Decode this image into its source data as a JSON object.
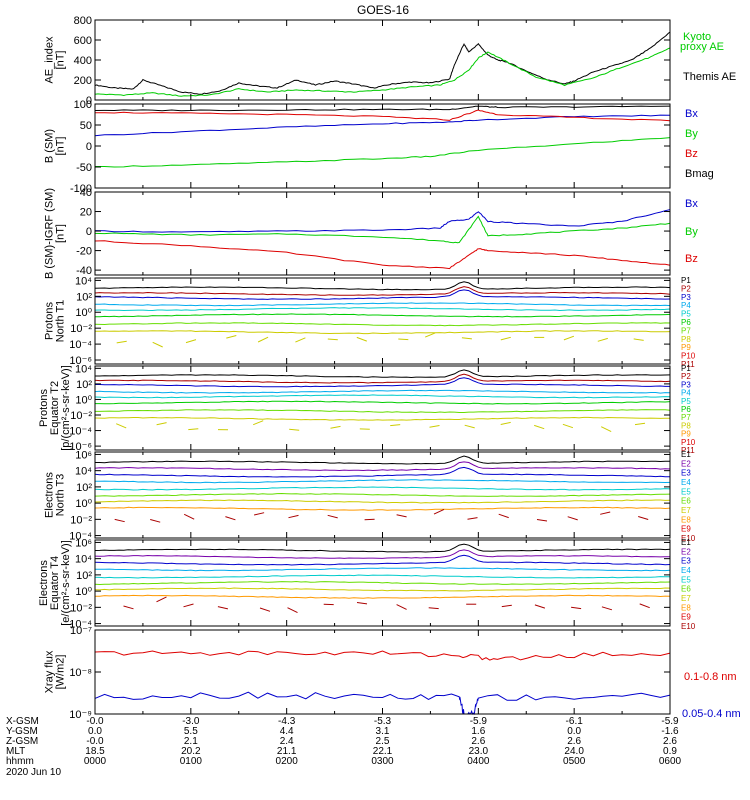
{
  "title": "GOES-16",
  "date_label": "2020 Jun 10",
  "time_axis": {
    "range_hours": [
      0,
      6
    ],
    "tick_hours": [
      0,
      1,
      2,
      3,
      4,
      5,
      6
    ],
    "row_labels": [
      "X-GSM",
      "Y-GSM",
      "Z-GSM",
      "MLT",
      "hhmm"
    ],
    "rows": [
      [
        "-0.0",
        "-3.0",
        "-4.3",
        "-5.3",
        "-5.9",
        "-6.1",
        "-5.9"
      ],
      [
        "0.0",
        "5.5",
        "4.4",
        "3.1",
        "1.6",
        "0.0",
        "-1.6"
      ],
      [
        "-0.0",
        "2.1",
        "2.4",
        "2.5",
        "2.6",
        "2.6",
        "2.6"
      ],
      [
        "18.5",
        "20.2",
        "21.1",
        "22.1",
        "23.0",
        "24.0",
        "0.9"
      ],
      [
        "0000",
        "0100",
        "0200",
        "0300",
        "0400",
        "0500",
        "0600"
      ]
    ]
  },
  "colors": {
    "black": "#000000",
    "red": "#dd0000",
    "green": "#00cc00",
    "blue": "#0000cc",
    "cyan": "#00cccc",
    "orange": "#ff9900",
    "yellow": "#cccc00",
    "darkred": "#aa0000",
    "purple": "#7700aa",
    "sky": "#00aaee",
    "lime": "#66dd00",
    "gold": "#ddaa00"
  },
  "chart_data": [
    {
      "type": "line",
      "id": "ae",
      "ylabel": [
        "AE_index",
        "[nT]"
      ],
      "ylim": [
        0,
        800
      ],
      "yticks": [
        "0",
        "200",
        "400",
        "600",
        "800"
      ],
      "ytick_values": [
        0,
        200,
        400,
        600,
        800
      ],
      "legend": [
        {
          "text": "Kyoto",
          "color": "green"
        },
        {
          "text": "proxy AE",
          "color": "green"
        },
        {
          "text": "Themis AE",
          "color": "black"
        }
      ],
      "series": [
        {
          "color": "black",
          "points": [
            [
              0,
              150
            ],
            [
              0.2,
              120
            ],
            [
              0.4,
              110
            ],
            [
              0.5,
              200
            ],
            [
              0.7,
              140
            ],
            [
              0.9,
              80
            ],
            [
              1.1,
              60
            ],
            [
              1.3,
              90
            ],
            [
              1.5,
              170
            ],
            [
              1.7,
              140
            ],
            [
              1.9,
              120
            ],
            [
              2.1,
              200
            ],
            [
              2.3,
              150
            ],
            [
              2.5,
              190
            ],
            [
              2.7,
              160
            ],
            [
              2.9,
              120
            ],
            [
              3.1,
              160
            ],
            [
              3.3,
              180
            ],
            [
              3.5,
              170
            ],
            [
              3.7,
              210
            ],
            [
              3.75,
              350
            ],
            [
              3.85,
              560
            ],
            [
              3.9,
              480
            ],
            [
              4.0,
              560
            ],
            [
              4.1,
              450
            ],
            [
              4.2,
              400
            ],
            [
              4.3,
              380
            ],
            [
              4.5,
              290
            ],
            [
              4.7,
              210
            ],
            [
              4.9,
              160
            ],
            [
              5.0,
              190
            ],
            [
              5.2,
              280
            ],
            [
              5.4,
              340
            ],
            [
              5.6,
              400
            ],
            [
              5.8,
              520
            ],
            [
              6,
              680
            ]
          ]
        },
        {
          "color": "green",
          "points": [
            [
              0,
              60
            ],
            [
              0.3,
              50
            ],
            [
              0.6,
              70
            ],
            [
              0.9,
              40
            ],
            [
              1.2,
              50
            ],
            [
              1.5,
              110
            ],
            [
              1.8,
              80
            ],
            [
              2.1,
              100
            ],
            [
              2.4,
              90
            ],
            [
              2.7,
              80
            ],
            [
              3.0,
              100
            ],
            [
              3.3,
              130
            ],
            [
              3.6,
              150
            ],
            [
              3.75,
              200
            ],
            [
              3.9,
              300
            ],
            [
              4.0,
              420
            ],
            [
              4.1,
              480
            ],
            [
              4.3,
              380
            ],
            [
              4.6,
              230
            ],
            [
              4.9,
              150
            ],
            [
              5.2,
              220
            ],
            [
              5.5,
              330
            ],
            [
              5.8,
              430
            ],
            [
              6,
              520
            ]
          ]
        }
      ]
    },
    {
      "type": "line",
      "id": "bsm",
      "ylabel": [
        "B (SM)",
        "[nT]"
      ],
      "ylim": [
        -100,
        100
      ],
      "yticks": [
        "-100",
        "-50",
        "0",
        "50",
        "100"
      ],
      "ytick_values": [
        -100,
        -50,
        0,
        50,
        100
      ],
      "legend": [
        {
          "text": "Bx",
          "color": "blue"
        },
        {
          "text": "By",
          "color": "green"
        },
        {
          "text": "Bz",
          "color": "red"
        },
        {
          "text": "Bmag",
          "color": "black"
        }
      ],
      "series": [
        {
          "color": "black",
          "points": [
            [
              0,
              85
            ],
            [
              1,
              85
            ],
            [
              2,
              86
            ],
            [
              3,
              87
            ],
            [
              3.7,
              87
            ],
            [
              4.0,
              95
            ],
            [
              4.2,
              92
            ],
            [
              5,
              93
            ],
            [
              6,
              95
            ]
          ]
        },
        {
          "color": "blue",
          "points": [
            [
              0,
              25
            ],
            [
              1,
              35
            ],
            [
              2,
              45
            ],
            [
              3,
              53
            ],
            [
              3.7,
              57
            ],
            [
              4.0,
              62
            ],
            [
              5,
              70
            ],
            [
              6,
              73
            ]
          ]
        },
        {
          "color": "red",
          "points": [
            [
              0,
              80
            ],
            [
              1,
              78
            ],
            [
              2,
              75
            ],
            [
              3,
              70
            ],
            [
              3.7,
              62
            ],
            [
              4.0,
              85
            ],
            [
              4.2,
              75
            ],
            [
              5,
              68
            ],
            [
              6,
              60
            ]
          ]
        },
        {
          "color": "green",
          "points": [
            [
              0,
              -50
            ],
            [
              1,
              -45
            ],
            [
              2,
              -38
            ],
            [
              3,
              -30
            ],
            [
              3.5,
              -25
            ],
            [
              4.0,
              -10
            ],
            [
              5,
              5
            ],
            [
              6,
              20
            ]
          ]
        }
      ]
    },
    {
      "type": "line",
      "id": "bigrf",
      "ylabel": [
        "B (SM)-IGRF (SM)",
        "[nT]"
      ],
      "ylim": [
        -45,
        40
      ],
      "yticks": [
        "-40",
        "-20",
        "0",
        "20",
        "40"
      ],
      "ytick_values": [
        -40,
        -20,
        0,
        20,
        40
      ],
      "legend": [
        {
          "text": "Bx",
          "color": "blue"
        },
        {
          "text": "By",
          "color": "green"
        },
        {
          "text": "Bz",
          "color": "red"
        }
      ],
      "series": [
        {
          "color": "blue",
          "points": [
            [
              0,
              0
            ],
            [
              1,
              -1
            ],
            [
              2,
              0
            ],
            [
              3,
              1
            ],
            [
              3.6,
              3
            ],
            [
              3.7,
              10
            ],
            [
              3.9,
              12
            ],
            [
              4.0,
              20
            ],
            [
              4.1,
              10
            ],
            [
              4.4,
              8
            ],
            [
              5,
              5
            ],
            [
              5.5,
              10
            ],
            [
              6,
              22
            ]
          ]
        },
        {
          "color": "green",
          "points": [
            [
              0,
              -2
            ],
            [
              1,
              -4
            ],
            [
              2,
              -3
            ],
            [
              3,
              -6
            ],
            [
              3.6,
              -10
            ],
            [
              3.8,
              -12
            ],
            [
              4.0,
              15
            ],
            [
              4.1,
              -5
            ],
            [
              4.5,
              -3
            ],
            [
              5,
              0
            ],
            [
              5.5,
              3
            ],
            [
              6,
              8
            ]
          ]
        },
        {
          "color": "red",
          "points": [
            [
              0,
              -10
            ],
            [
              1,
              -15
            ],
            [
              2,
              -22
            ],
            [
              3,
              -35
            ],
            [
              3.7,
              -38
            ],
            [
              3.9,
              -25
            ],
            [
              4.0,
              -18
            ],
            [
              4.1,
              -20
            ],
            [
              4.5,
              -22
            ],
            [
              5,
              -25
            ],
            [
              5.5,
              -30
            ],
            [
              6,
              -35
            ]
          ]
        }
      ]
    },
    {
      "type": "line",
      "id": "protons_north",
      "ylabel": [
        "Protons",
        "North T1"
      ],
      "yscale": "log",
      "ylim": [
        -6.5,
        4.3
      ],
      "yticks": [
        "10⁴",
        "10²",
        "10⁰",
        "10⁻²",
        "10⁻⁴",
        "10⁻⁶"
      ],
      "ytick_values": [
        4,
        2,
        0,
        -2,
        -4,
        -6
      ],
      "legend": [
        {
          "text": "P1",
          "color": "black"
        },
        {
          "text": "P2",
          "color": "darkred"
        },
        {
          "text": "P3",
          "color": "blue"
        },
        {
          "text": "P4",
          "color": "sky"
        },
        {
          "text": "P5",
          "color": "cyan"
        },
        {
          "text": "P6",
          "color": "green"
        },
        {
          "text": "P7",
          "color": "lime"
        },
        {
          "text": "P8",
          "color": "yellow"
        },
        {
          "text": "P9",
          "color": "orange"
        },
        {
          "text": "P10",
          "color": "red"
        },
        {
          "text": "P11",
          "color": "darkred"
        }
      ],
      "levels": [
        3.0,
        2.3,
        1.8,
        1.0,
        0.4,
        -0.4,
        -1.5,
        -2.5
      ]
    },
    {
      "type": "line",
      "id": "protons_equator",
      "ylabel": [
        "Protons",
        "Equator T2",
        "[p/(cm²-s-sr-keV)]"
      ],
      "yscale": "log",
      "ylim": [
        -6.5,
        4.3
      ],
      "yticks": [
        "10⁴",
        "10²",
        "10⁰",
        "10⁻²",
        "10⁻⁴",
        "10⁻⁶"
      ],
      "ytick_values": [
        4,
        2,
        0,
        -2,
        -4,
        -6
      ],
      "legend": [
        {
          "text": "P1",
          "color": "black"
        },
        {
          "text": "P2",
          "color": "darkred"
        },
        {
          "text": "P3",
          "color": "blue"
        },
        {
          "text": "P4",
          "color": "sky"
        },
        {
          "text": "P5",
          "color": "cyan"
        },
        {
          "text": "P6",
          "color": "green"
        },
        {
          "text": "P7",
          "color": "lime"
        },
        {
          "text": "P8",
          "color": "yellow"
        },
        {
          "text": "P9",
          "color": "orange"
        },
        {
          "text": "P10",
          "color": "red"
        },
        {
          "text": "P11",
          "color": "darkred"
        }
      ],
      "levels": [
        3.0,
        2.3,
        1.8,
        1.0,
        0.4,
        -0.4,
        -1.5,
        -2.5
      ]
    },
    {
      "type": "line",
      "id": "electrons_north",
      "ylabel": [
        "Electrons",
        "North T3"
      ],
      "yscale": "log",
      "ylim": [
        -4.3,
        6.3
      ],
      "yticks": [
        "10⁶",
        "10⁴",
        "10²",
        "10⁰",
        "10⁻²",
        "10⁻⁴"
      ],
      "ytick_values": [
        6,
        4,
        2,
        0,
        -2,
        -4
      ],
      "legend": [
        {
          "text": "E1",
          "color": "black"
        },
        {
          "text": "E2",
          "color": "purple"
        },
        {
          "text": "E3",
          "color": "blue"
        },
        {
          "text": "E4",
          "color": "sky"
        },
        {
          "text": "E5",
          "color": "cyan"
        },
        {
          "text": "E6",
          "color": "lime"
        },
        {
          "text": "E7",
          "color": "yellow"
        },
        {
          "text": "E8",
          "color": "orange"
        },
        {
          "text": "E9",
          "color": "red"
        },
        {
          "text": "E10",
          "color": "darkred"
        }
      ],
      "levels": [
        5.0,
        4.2,
        3.4,
        2.7,
        1.8,
        1.0,
        0.2,
        -0.7
      ]
    },
    {
      "type": "line",
      "id": "electrons_equator",
      "ylabel": [
        "Electrons",
        "Equator T4",
        "[e/(cm²-s-sr-keV)]"
      ],
      "yscale": "log",
      "ylim": [
        -4.3,
        6.3
      ],
      "yticks": [
        "10⁶",
        "10⁴",
        "10²",
        "10⁰",
        "10⁻²",
        "10⁻⁴"
      ],
      "ytick_values": [
        6,
        4,
        2,
        0,
        -2,
        -4
      ],
      "legend": [
        {
          "text": "E1",
          "color": "black"
        },
        {
          "text": "E2",
          "color": "purple"
        },
        {
          "text": "E3",
          "color": "blue"
        },
        {
          "text": "E4",
          "color": "sky"
        },
        {
          "text": "E5",
          "color": "cyan"
        },
        {
          "text": "E6",
          "color": "lime"
        },
        {
          "text": "E7",
          "color": "yellow"
        },
        {
          "text": "E8",
          "color": "orange"
        },
        {
          "text": "E9",
          "color": "red"
        },
        {
          "text": "E10",
          "color": "darkred"
        }
      ],
      "levels": [
        5.0,
        4.2,
        3.4,
        2.7,
        1.8,
        1.0,
        0.2,
        -0.7
      ]
    },
    {
      "type": "line",
      "id": "xray",
      "ylabel": [
        "Xray flux",
        "[W/m2]"
      ],
      "yscale": "log",
      "ylim": [
        -9,
        -7
      ],
      "yticks": [
        "10⁻⁷",
        "10⁻⁸",
        "10⁻⁹"
      ],
      "ytick_values": [
        -7,
        -8,
        -9
      ],
      "legend": [
        {
          "text": "0.1-0.8 nm",
          "color": "red"
        },
        {
          "text": "0.05-0.4 nm",
          "color": "blue"
        }
      ],
      "series": [
        {
          "color": "red",
          "points": [
            [
              0,
              -7.55
            ],
            [
              1,
              -7.55
            ],
            [
              2,
              -7.55
            ],
            [
              3,
              -7.55
            ],
            [
              3.8,
              -7.6
            ],
            [
              4.2,
              -7.7
            ],
            [
              5,
              -7.6
            ],
            [
              6,
              -7.55
            ]
          ]
        },
        {
          "color": "blue",
          "points": [
            [
              0,
              -8.6
            ],
            [
              1,
              -8.55
            ],
            [
              2,
              -8.55
            ],
            [
              3,
              -8.6
            ],
            [
              3.8,
              -8.6
            ],
            [
              3.85,
              -9
            ],
            [
              3.95,
              -9
            ],
            [
              4.0,
              -8.6
            ],
            [
              5,
              -8.6
            ],
            [
              6,
              -8.55
            ]
          ]
        }
      ]
    }
  ]
}
